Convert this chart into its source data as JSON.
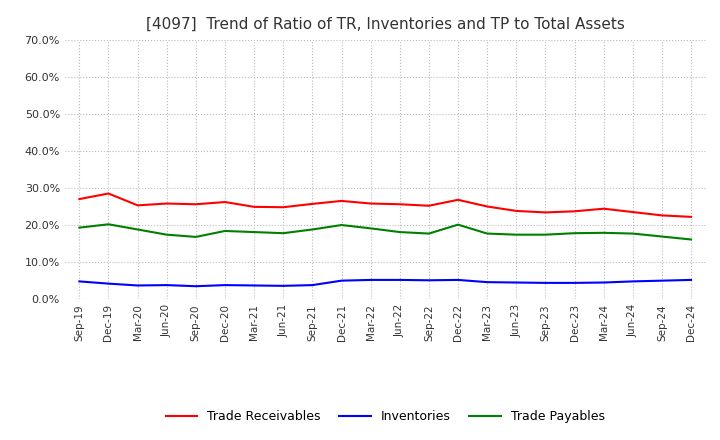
{
  "title": "[4097]  Trend of Ratio of TR, Inventories and TP to Total Assets",
  "x_labels": [
    "Sep-19",
    "Dec-19",
    "Mar-20",
    "Jun-20",
    "Sep-20",
    "Dec-20",
    "Mar-21",
    "Jun-21",
    "Sep-21",
    "Dec-21",
    "Mar-22",
    "Jun-22",
    "Sep-22",
    "Dec-22",
    "Mar-23",
    "Jun-23",
    "Sep-23",
    "Dec-23",
    "Mar-24",
    "Jun-24",
    "Sep-24",
    "Dec-24"
  ],
  "trade_receivables": [
    0.27,
    0.285,
    0.253,
    0.258,
    0.256,
    0.262,
    0.249,
    0.248,
    0.257,
    0.265,
    0.258,
    0.256,
    0.252,
    0.268,
    0.25,
    0.238,
    0.234,
    0.237,
    0.244,
    0.235,
    0.226,
    0.222
  ],
  "inventories": [
    0.048,
    0.042,
    0.037,
    0.038,
    0.035,
    0.038,
    0.037,
    0.036,
    0.038,
    0.05,
    0.052,
    0.052,
    0.051,
    0.052,
    0.046,
    0.045,
    0.044,
    0.044,
    0.045,
    0.048,
    0.05,
    0.052
  ],
  "trade_payables": [
    0.193,
    0.202,
    0.188,
    0.174,
    0.168,
    0.184,
    0.181,
    0.178,
    0.188,
    0.2,
    0.191,
    0.181,
    0.177,
    0.201,
    0.177,
    0.174,
    0.174,
    0.178,
    0.179,
    0.177,
    0.169,
    0.161
  ],
  "tr_color": "#FF0000",
  "inv_color": "#0000FF",
  "tp_color": "#008000",
  "ylim": [
    0.0,
    0.7
  ],
  "yticks": [
    0.0,
    0.1,
    0.2,
    0.3,
    0.4,
    0.5,
    0.6,
    0.7
  ],
  "bg_color": "#FFFFFF",
  "plot_bg_color": "#FFFFFF",
  "grid_color": "#BBBBBB",
  "legend_labels": [
    "Trade Receivables",
    "Inventories",
    "Trade Payables"
  ]
}
